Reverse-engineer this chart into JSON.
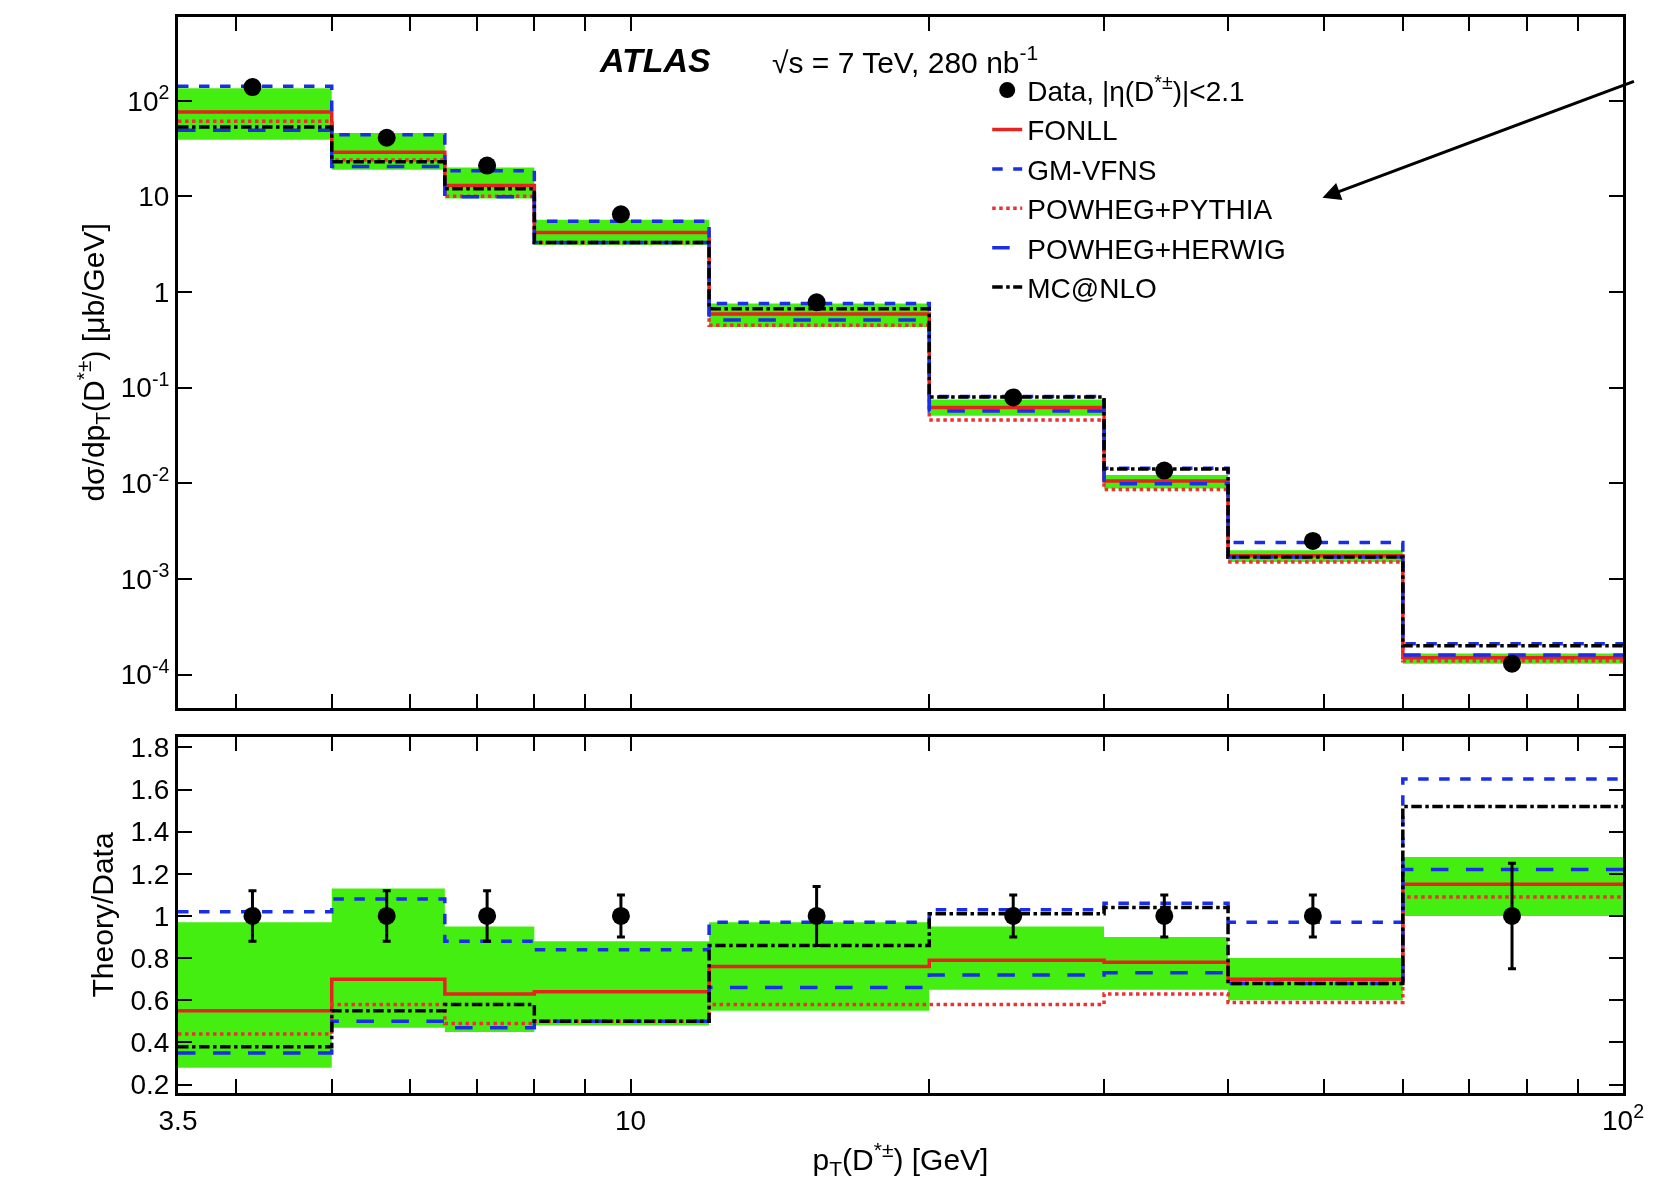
{
  "chart_data": [
    {
      "type": "step",
      "ylabel": "dσ/dp$_{T}$(D$^{*±}$) [μb/GeV]",
      "log": "xy",
      "xlim": [
        3.5,
        100
      ],
      "ylim": [
        4.5e-05,
        750
      ],
      "annotations": [
        "ATLAS",
        "√s = 7 TeV, 280 nb$^{-1}$"
      ],
      "xticks": [
        {
          "value": 3.5,
          "label": null
        },
        {
          "value": 4,
          "label": null
        },
        {
          "value": 5,
          "label": null
        },
        {
          "value": 6,
          "label": null
        },
        {
          "value": 7,
          "label": null
        },
        {
          "value": 8,
          "label": null
        },
        {
          "value": 9,
          "label": null
        },
        {
          "value": 10,
          "label": null
        },
        {
          "value": 20,
          "label": null
        },
        {
          "value": 30,
          "label": null
        },
        {
          "value": 40,
          "label": null
        },
        {
          "value": 50,
          "label": null
        },
        {
          "value": 60,
          "label": null
        },
        {
          "value": 70,
          "label": null
        },
        {
          "value": 80,
          "label": null
        },
        {
          "value": 90,
          "label": null
        },
        {
          "value": 100,
          "label": null
        }
      ],
      "yticks": [
        {
          "value": 0.0001,
          "label": "10$^{-4}$"
        },
        {
          "value": 0.001,
          "label": "10$^{-3}$"
        },
        {
          "value": 0.01,
          "label": "10$^{-2}$"
        },
        {
          "value": 0.1,
          "label": "10$^{-1}$"
        },
        1,
        10,
        {
          "value": 100,
          "label": "10$^{2}$"
        }
      ],
      "tick_labels": "y",
      "legend": "top right",
      "series": [
        {
          "name": "Data, |η(D$^{*±}$)|<2.1",
          "type": "scatter",
          "marker": "circle",
          "color": "#000000",
          "x": [
            4.16,
            5.68,
            7.17,
            9.78,
            15.4,
            24.3,
            34.5,
            48.7,
            77.3
          ],
          "values": [
            139,
            41,
            21,
            6.5,
            0.78,
            0.079,
            0.0136,
            0.0025,
            0.00013
          ]
        },
        {
          "name": "FONLL",
          "color": "#e8221f",
          "line_style": "solid",
          "x": [
            3.5,
            5,
            6.5,
            8,
            12,
            20,
            30,
            40,
            60,
            100
          ],
          "values": [
            76,
            29,
            13,
            4.2,
            0.59,
            0.062,
            0.0106,
            0.00175,
            0.00015,
            0.00015
          ],
          "lower": [
            39,
            19,
            9.5,
            3.1,
            0.43,
            0.051,
            0.0088,
            0.0015,
            0.00013,
            0.00013
          ],
          "upper": [
            135,
            46,
            20,
            5.7,
            0.76,
            0.075,
            0.0122,
            0.002,
            0.000166,
            0.000166
          ]
        },
        {
          "name": "GM-VFNS",
          "color": "#1a2ee8",
          "line_style": "dashed",
          "x": [
            3.5,
            5,
            6.5,
            8,
            12,
            20,
            30,
            40,
            60,
            100
          ],
          "values": [
            142,
            44,
            18.5,
            5.5,
            0.76,
            0.081,
            0.0144,
            0.0024,
            0.00021,
            0.00021
          ]
        },
        {
          "name": "POWHEG+PYTHIA",
          "color": "#f03030",
          "line_style": "dotted",
          "x": [
            3.5,
            5,
            6.5,
            8,
            12,
            20,
            30,
            40,
            60,
            100
          ],
          "values": [
            61,
            24,
            10,
            3.3,
            0.45,
            0.046,
            0.0086,
            0.0015,
            0.00014,
            0.00014
          ]
        },
        {
          "name": "POWHEG+HERWIG",
          "color": "#1a2ee8",
          "line_style": "longdash",
          "x": [
            3.5,
            5,
            6.5,
            8,
            12,
            20,
            30,
            40,
            60,
            100
          ],
          "values": [
            49,
            20.5,
            9.9,
            3.3,
            0.51,
            0.057,
            0.0099,
            0.0017,
            0.00016,
            0.00016
          ]
        },
        {
          "name": "MC@NLO",
          "color": "#000000",
          "line_style": "dashdot",
          "x": [
            3.5,
            5,
            6.5,
            8,
            12,
            20,
            30,
            40,
            60,
            100
          ],
          "values": [
            53,
            23,
            12,
            3.3,
            0.67,
            0.08,
            0.0141,
            0.0017,
            0.0002,
            0.0002
          ]
        }
      ]
    },
    {
      "type": "step",
      "ylabel": "Theory/Data",
      "xlabel": "p$_{T}$(D$^{*±}$) [GeV]",
      "log": "x",
      "xlim": [
        3.5,
        100
      ],
      "ylim": [
        0.16,
        1.85
      ],
      "xticks": [
        3.5,
        {
          "value": 4,
          "label": null
        },
        {
          "value": 5,
          "label": null
        },
        {
          "value": 6,
          "label": null
        },
        {
          "value": 7,
          "label": null
        },
        {
          "value": 8,
          "label": null
        },
        {
          "value": 9,
          "label": null
        },
        10,
        {
          "value": 20,
          "label": null
        },
        {
          "value": 30,
          "label": null
        },
        {
          "value": 40,
          "label": null
        },
        {
          "value": 50,
          "label": null
        },
        {
          "value": 60,
          "label": null
        },
        {
          "value": 70,
          "label": null
        },
        {
          "value": 80,
          "label": null
        },
        {
          "value": 90,
          "label": null
        },
        {
          "value": 100,
          "label": "10$^{2}$"
        }
      ],
      "yticks": [
        0.2,
        0.4,
        0.6,
        0.8,
        1,
        1.2,
        1.4,
        1.6,
        1.8
      ],
      "legend": false,
      "series": [
        {
          "type": "scatter",
          "marker": "circle",
          "color": "#000000",
          "x": [
            4.16,
            5.68,
            7.17,
            9.78,
            15.4,
            24.3,
            34.5,
            48.7,
            77.3
          ],
          "values": [
            1,
            1,
            1,
            1,
            1,
            1,
            1,
            1,
            1
          ],
          "errors": [
            0.12,
            0.12,
            0.12,
            0.1,
            0.14,
            0.1,
            0.1,
            0.1,
            0.25
          ]
        },
        {
          "color": "#e8221f",
          "line_style": "solid",
          "x": [
            3.5,
            5,
            6.5,
            8,
            12,
            20,
            30,
            40,
            60,
            100
          ],
          "values": [
            0.55,
            0.7,
            0.63,
            0.64,
            0.76,
            0.79,
            0.78,
            0.7,
            1.15,
            1.15
          ],
          "lower": [
            0.28,
            0.47,
            0.45,
            0.48,
            0.55,
            0.65,
            0.65,
            0.6,
            1.0,
            1.0
          ],
          "upper": [
            0.97,
            1.13,
            0.95,
            0.88,
            0.97,
            0.95,
            0.9,
            0.8,
            1.28,
            1.28
          ]
        },
        {
          "color": "#1a2ee8",
          "line_style": "dashed",
          "x": [
            3.5,
            5,
            6.5,
            8,
            12,
            20,
            30,
            40,
            60,
            100
          ],
          "values": [
            1.02,
            1.08,
            0.88,
            0.84,
            0.97,
            1.03,
            1.06,
            0.97,
            1.65,
            1.65
          ]
        },
        {
          "color": "#f03030",
          "line_style": "dotted",
          "x": [
            3.5,
            5,
            6.5,
            8,
            12,
            20,
            30,
            40,
            60,
            100
          ],
          "values": [
            0.44,
            0.58,
            0.49,
            0.5,
            0.58,
            0.58,
            0.63,
            0.59,
            1.09,
            1.09
          ]
        },
        {
          "color": "#1a2ee8",
          "line_style": "longdash",
          "x": [
            3.5,
            5,
            6.5,
            8,
            12,
            20,
            30,
            40,
            60,
            100
          ],
          "values": [
            0.35,
            0.5,
            0.47,
            0.5,
            0.66,
            0.72,
            0.73,
            0.68,
            1.22,
            1.22
          ]
        },
        {
          "color": "#000000",
          "line_style": "dashdot",
          "x": [
            3.5,
            5,
            6.5,
            8,
            12,
            20,
            30,
            40,
            60,
            100
          ],
          "values": [
            0.38,
            0.55,
            0.58,
            0.5,
            0.86,
            1.01,
            1.04,
            0.68,
            1.52,
            1.52
          ]
        }
      ]
    }
  ]
}
